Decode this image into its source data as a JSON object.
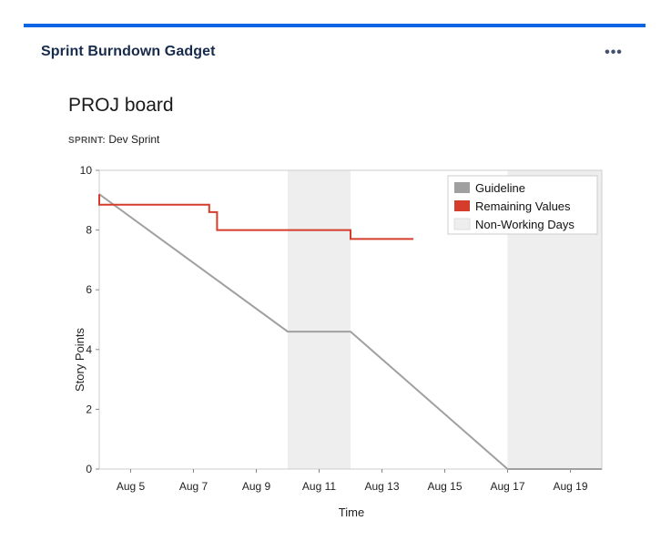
{
  "gadget": {
    "title": "Sprint Burndown Gadget",
    "menu_label": "•••",
    "accent_color": "#0c66e4"
  },
  "board": {
    "title": "PROJ board",
    "sprint_label": "SPRINT:",
    "sprint_name": "Dev Sprint"
  },
  "chart_data": {
    "type": "line",
    "title": "",
    "xlabel": "Time",
    "ylabel": "Story Points",
    "x_ticks": [
      "Aug 5",
      "Aug 7",
      "Aug 9",
      "Aug 11",
      "Aug 13",
      "Aug 15",
      "Aug 17",
      "Aug 19"
    ],
    "y_ticks": [
      0,
      2,
      4,
      6,
      8,
      10
    ],
    "xlim": [
      "Aug 4",
      "Aug 20"
    ],
    "ylim": [
      0,
      10
    ],
    "grid": false,
    "legend_position": "top-right",
    "non_working_days": [
      {
        "start": "Aug 10",
        "end": "Aug 12"
      },
      {
        "start": "Aug 17",
        "end": "Aug 20"
      }
    ],
    "series": [
      {
        "name": "Guideline",
        "color": "#a0a0a0",
        "points": [
          {
            "x": "Aug 4",
            "y": 9.2
          },
          {
            "x": "Aug 10",
            "y": 4.6
          },
          {
            "x": "Aug 12",
            "y": 4.6
          },
          {
            "x": "Aug 17",
            "y": 0
          },
          {
            "x": "Aug 20",
            "y": 0
          }
        ]
      },
      {
        "name": "Remaining Values",
        "color": "#d63c2c",
        "step": true,
        "points": [
          {
            "x": "Aug 4",
            "y": 9.2
          },
          {
            "x": "Aug 4",
            "y": 8.85
          },
          {
            "x": "Aug 7.5",
            "y": 8.85
          },
          {
            "x": "Aug 7.5",
            "y": 8.6
          },
          {
            "x": "Aug 7.75",
            "y": 8.6
          },
          {
            "x": "Aug 7.75",
            "y": 8.0
          },
          {
            "x": "Aug 12",
            "y": 8.0
          },
          {
            "x": "Aug 12",
            "y": 7.7
          },
          {
            "x": "Aug 14",
            "y": 7.7
          }
        ]
      },
      {
        "name": "Non-Working Days",
        "color": "#eeeeee"
      }
    ]
  }
}
